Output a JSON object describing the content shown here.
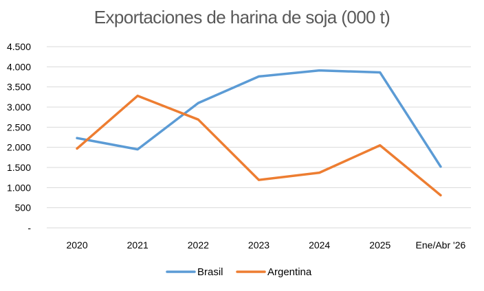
{
  "chart_data": {
    "type": "line",
    "title": "Exportaciones de harina de soja (000 t)",
    "categories": [
      "2020",
      "2021",
      "2022",
      "2023",
      "2024",
      "2025",
      "Ene/Abr '26"
    ],
    "y_ticks": [
      "-",
      "500",
      "1.000",
      "1.500",
      "2.000",
      "2.500",
      "3.000",
      "3.500",
      "4.000",
      "4.500"
    ],
    "ylim": [
      0,
      4500
    ],
    "grid": true,
    "legend_position": "bottom",
    "series": [
      {
        "name": "Brasil",
        "color": "#5B9BD5",
        "values": [
          2230,
          1950,
          3100,
          3760,
          3910,
          3860,
          1520
        ]
      },
      {
        "name": "Argentina",
        "color": "#ED7D31",
        "values": [
          1970,
          3280,
          2690,
          1190,
          1370,
          2050,
          810
        ]
      }
    ]
  }
}
